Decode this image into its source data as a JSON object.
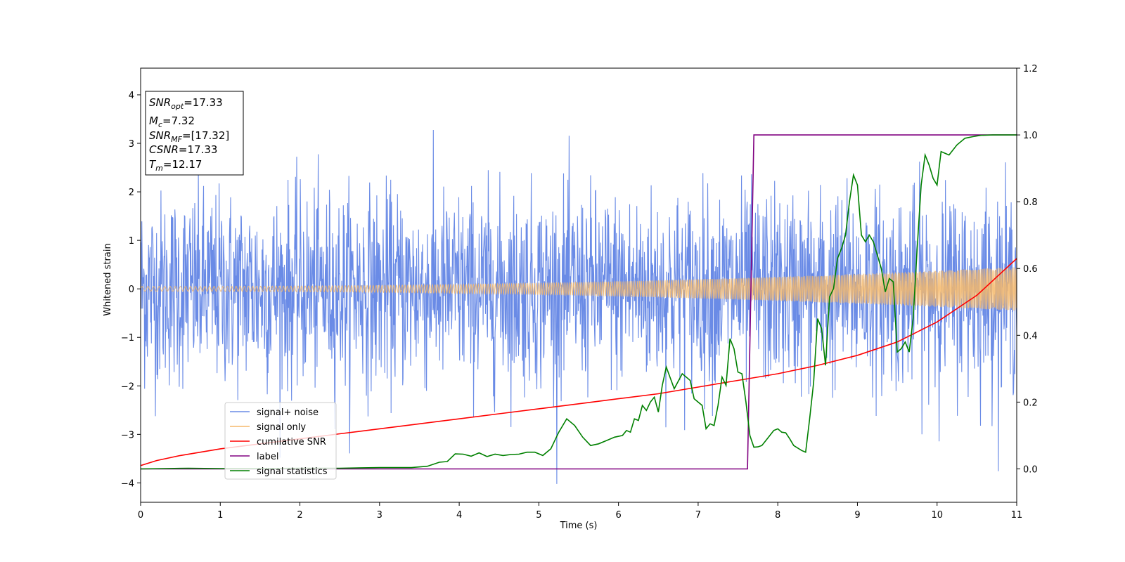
{
  "chart_data": {
    "type": "line",
    "title": "",
    "xlabel": "Time (s)",
    "ylabel": "Whitened strain",
    "xlim": [
      0,
      11
    ],
    "ylim": [
      -4.4,
      4.55
    ],
    "y2lim": [
      -0.1,
      1.2
    ],
    "xticks": [
      "0",
      "1",
      "2",
      "3",
      "4",
      "5",
      "6",
      "7",
      "8",
      "9",
      "10",
      "11"
    ],
    "yticks": [
      "4",
      "3",
      "2",
      "1",
      "0",
      "−1",
      "−2",
      "−3",
      "−4"
    ],
    "y2ticks": [
      "0.0",
      "0.2",
      "0.4",
      "0.6",
      "0.8",
      "1.0",
      "1.2"
    ],
    "grid": false,
    "legend_location": "lower-left",
    "info_box": {
      "location": "upper-left",
      "lines": [
        {
          "base": "SNR",
          "sub": "opt",
          "value": "=17.33"
        },
        {
          "base": "M",
          "sub": "c",
          "value": "=7.32"
        },
        {
          "base": "SNR",
          "sub": "MF",
          "value": "=[17.32]"
        },
        {
          "base": "CSNR",
          "sub": "",
          "value": "=17.33"
        },
        {
          "base": "T",
          "sub": "m",
          "value": "=12.17"
        }
      ]
    },
    "series": [
      {
        "name": "signal+ noise",
        "color": "#6a8be6",
        "axis": "left",
        "kind": "noise",
        "sigma": 1.0,
        "sample_count": 2200
      },
      {
        "name": "signal only",
        "color": "#f5b86b",
        "axis": "left",
        "kind": "chirp",
        "amplitude_start": 0.05,
        "amplitude_end": 0.45,
        "cycles": 420
      },
      {
        "name": "cumilative SNR",
        "color": "#ff0000",
        "axis": "right",
        "x": [
          0,
          0.2,
          0.5,
          1,
          1.5,
          2,
          2.5,
          3,
          3.5,
          4,
          4.5,
          5,
          5.5,
          6,
          6.5,
          7,
          7.5,
          8,
          8.5,
          9,
          9.5,
          10,
          10.5,
          11
        ],
        "y": [
          0.01,
          0.025,
          0.04,
          0.06,
          0.075,
          0.09,
          0.105,
          0.12,
          0.135,
          0.15,
          0.165,
          0.18,
          0.195,
          0.21,
          0.225,
          0.245,
          0.265,
          0.285,
          0.31,
          0.34,
          0.38,
          0.44,
          0.52,
          0.63
        ]
      },
      {
        "name": "label",
        "color": "#800080",
        "axis": "right",
        "x": [
          0,
          7.62,
          7.7,
          11
        ],
        "y": [
          0,
          0,
          1,
          1
        ]
      },
      {
        "name": "signal statistics",
        "color": "#008000",
        "axis": "right",
        "x": [
          0,
          0.3,
          0.6,
          1,
          1.5,
          2,
          2.5,
          3,
          3.4,
          3.6,
          3.75,
          3.85,
          3.95,
          4.05,
          4.15,
          4.25,
          4.35,
          4.45,
          4.55,
          4.65,
          4.75,
          4.85,
          4.95,
          5.05,
          5.15,
          5.25,
          5.35,
          5.45,
          5.55,
          5.65,
          5.75,
          5.85,
          5.95,
          6.05,
          6.1,
          6.15,
          6.2,
          6.25,
          6.3,
          6.35,
          6.4,
          6.45,
          6.5,
          6.55,
          6.6,
          6.7,
          6.8,
          6.9,
          6.95,
          7.0,
          7.05,
          7.1,
          7.15,
          7.2,
          7.25,
          7.3,
          7.35,
          7.4,
          7.45,
          7.5,
          7.55,
          7.6,
          7.65,
          7.7,
          7.75,
          7.8,
          7.85,
          7.9,
          7.95,
          8.0,
          8.05,
          8.1,
          8.15,
          8.2,
          8.3,
          8.35,
          8.4,
          8.45,
          8.5,
          8.55,
          8.6,
          8.65,
          8.7,
          8.75,
          8.8,
          8.85,
          8.9,
          8.95,
          9.0,
          9.05,
          9.1,
          9.15,
          9.2,
          9.25,
          9.3,
          9.35,
          9.4,
          9.45,
          9.5,
          9.55,
          9.6,
          9.65,
          9.7,
          9.75,
          9.8,
          9.85,
          9.9,
          9.95,
          10.0,
          10.05,
          10.15,
          10.25,
          10.35,
          10.45,
          10.55,
          10.7,
          10.85,
          11
        ],
        "y": [
          0,
          0.001,
          0.002,
          0.001,
          0.001,
          0.002,
          0.002,
          0.004,
          0.004,
          0.008,
          0.02,
          0.022,
          0.045,
          0.044,
          0.038,
          0.048,
          0.037,
          0.044,
          0.04,
          0.043,
          0.044,
          0.05,
          0.05,
          0.04,
          0.06,
          0.11,
          0.15,
          0.13,
          0.095,
          0.07,
          0.075,
          0.085,
          0.095,
          0.1,
          0.115,
          0.11,
          0.15,
          0.145,
          0.19,
          0.175,
          0.2,
          0.215,
          0.17,
          0.25,
          0.305,
          0.24,
          0.285,
          0.265,
          0.21,
          0.2,
          0.19,
          0.12,
          0.135,
          0.13,
          0.19,
          0.275,
          0.25,
          0.39,
          0.36,
          0.29,
          0.285,
          0.2,
          0.1,
          0.065,
          0.066,
          0.07,
          0.085,
          0.1,
          0.115,
          0.12,
          0.11,
          0.108,
          0.09,
          0.07,
          0.055,
          0.05,
          0.15,
          0.26,
          0.45,
          0.42,
          0.31,
          0.515,
          0.54,
          0.63,
          0.66,
          0.7,
          0.8,
          0.88,
          0.85,
          0.7,
          0.68,
          0.7,
          0.68,
          0.64,
          0.6,
          0.53,
          0.57,
          0.56,
          0.35,
          0.36,
          0.38,
          0.35,
          0.45,
          0.66,
          0.85,
          0.94,
          0.91,
          0.87,
          0.85,
          0.95,
          0.94,
          0.97,
          0.99,
          0.995,
          0.999,
          1.0,
          1.0,
          1.0
        ]
      }
    ]
  }
}
